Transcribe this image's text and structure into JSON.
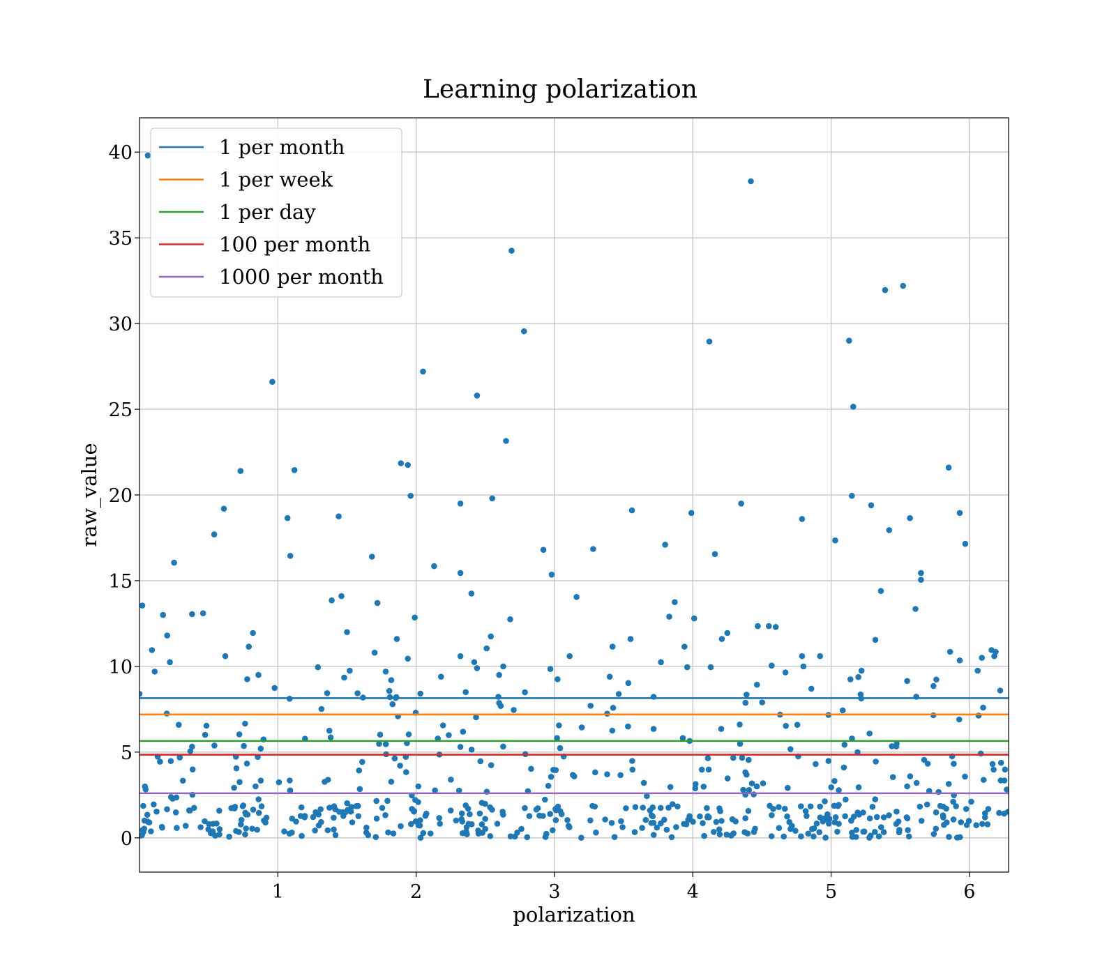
{
  "chart_data": {
    "type": "scatter",
    "title": "Learning polarization",
    "xlabel": "polarization",
    "ylabel": "raw_value",
    "xlim": [
      0,
      6.2832
    ],
    "ylim": [
      -2,
      42
    ],
    "xticks": [
      1,
      2,
      3,
      4,
      5,
      6
    ],
    "yticks": [
      0,
      5,
      10,
      15,
      20,
      25,
      30,
      35,
      40
    ],
    "grid": true,
    "legend_position": "top-left",
    "point_color": "#1f77b4",
    "hlines": [
      {
        "name": "1 per month",
        "y": 8.15,
        "color": "#1f77b4"
      },
      {
        "name": "1 per week",
        "y": 7.2,
        "color": "#ff7f0e"
      },
      {
        "name": "1 per day",
        "y": 5.65,
        "color": "#2ca02c"
      },
      {
        "name": "100 per month",
        "y": 4.85,
        "color": "#d62728"
      },
      {
        "name": "1000 per month",
        "y": 2.6,
        "color": "#9467bd"
      }
    ],
    "outliers": [
      [
        0.06,
        39.8
      ],
      [
        0.02,
        13.55
      ],
      [
        0.0,
        8.4
      ],
      [
        0.09,
        10.95
      ],
      [
        0.11,
        9.7
      ],
      [
        0.17,
        13.0
      ],
      [
        0.2,
        11.8
      ],
      [
        0.22,
        10.25
      ],
      [
        0.25,
        16.05
      ],
      [
        0.38,
        13.05
      ],
      [
        0.46,
        13.1
      ],
      [
        0.54,
        17.7
      ],
      [
        0.61,
        19.2
      ],
      [
        0.62,
        10.6
      ],
      [
        0.73,
        21.4
      ],
      [
        0.79,
        11.15
      ],
      [
        0.82,
        11.95
      ],
      [
        0.86,
        9.5
      ],
      [
        0.96,
        26.6
      ],
      [
        1.07,
        18.65
      ],
      [
        1.09,
        16.45
      ],
      [
        1.12,
        21.45
      ],
      [
        1.29,
        9.95
      ],
      [
        1.39,
        13.85
      ],
      [
        1.44,
        18.75
      ],
      [
        1.46,
        14.1
      ],
      [
        1.48,
        9.35
      ],
      [
        1.5,
        12.0
      ],
      [
        1.52,
        9.75
      ],
      [
        1.68,
        16.4
      ],
      [
        1.72,
        13.7
      ],
      [
        1.7,
        10.8
      ],
      [
        1.78,
        9.7
      ],
      [
        1.82,
        9.2
      ],
      [
        1.86,
        11.6
      ],
      [
        1.89,
        21.85
      ],
      [
        1.94,
        21.75
      ],
      [
        1.96,
        19.95
      ],
      [
        1.94,
        10.45
      ],
      [
        1.99,
        12.85
      ],
      [
        2.05,
        27.2
      ],
      [
        2.13,
        15.85
      ],
      [
        2.18,
        9.4
      ],
      [
        2.32,
        19.5
      ],
      [
        2.32,
        15.45
      ],
      [
        2.32,
        10.6
      ],
      [
        2.4,
        14.25
      ],
      [
        2.42,
        10.25
      ],
      [
        2.44,
        25.8
      ],
      [
        2.44,
        9.9
      ],
      [
        2.51,
        11.05
      ],
      [
        2.54,
        11.75
      ],
      [
        2.55,
        19.8
      ],
      [
        2.6,
        9.5
      ],
      [
        2.63,
        10.0
      ],
      [
        2.65,
        23.15
      ],
      [
        2.69,
        34.25
      ],
      [
        2.68,
        12.75
      ],
      [
        2.78,
        29.55
      ],
      [
        2.92,
        16.8
      ],
      [
        2.98,
        15.35
      ],
      [
        2.97,
        9.85
      ],
      [
        3.16,
        14.05
      ],
      [
        3.11,
        10.6
      ],
      [
        3.28,
        16.85
      ],
      [
        3.42,
        11.15
      ],
      [
        3.4,
        9.4
      ],
      [
        3.56,
        19.1
      ],
      [
        3.55,
        11.6
      ],
      [
        3.8,
        17.1
      ],
      [
        3.83,
        12.9
      ],
      [
        3.87,
        13.75
      ],
      [
        3.77,
        10.25
      ],
      [
        3.94,
        11.15
      ],
      [
        3.99,
        18.95
      ],
      [
        4.01,
        12.8
      ],
      [
        3.96,
        9.95
      ],
      [
        4.12,
        28.95
      ],
      [
        4.16,
        16.55
      ],
      [
        4.21,
        11.6
      ],
      [
        4.25,
        11.95
      ],
      [
        4.13,
        9.95
      ],
      [
        4.35,
        19.5
      ],
      [
        4.42,
        38.3
      ],
      [
        4.47,
        12.35
      ],
      [
        4.55,
        12.35
      ],
      [
        4.6,
        12.3
      ],
      [
        4.57,
        10.05
      ],
      [
        4.67,
        9.65
      ],
      [
        4.79,
        18.6
      ],
      [
        4.79,
        10.6
      ],
      [
        4.8,
        10.0
      ],
      [
        4.92,
        10.6
      ],
      [
        5.03,
        17.35
      ],
      [
        5.13,
        29.0
      ],
      [
        5.15,
        19.95
      ],
      [
        5.16,
        25.15
      ],
      [
        5.14,
        9.25
      ],
      [
        5.22,
        9.75
      ],
      [
        5.29,
        19.4
      ],
      [
        5.32,
        11.55
      ],
      [
        5.36,
        14.4
      ],
      [
        5.39,
        31.95
      ],
      [
        5.42,
        17.95
      ],
      [
        5.52,
        32.2
      ],
      [
        5.57,
        18.65
      ],
      [
        5.61,
        13.35
      ],
      [
        5.65,
        15.45
      ],
      [
        5.65,
        15.05
      ],
      [
        5.55,
        9.15
      ],
      [
        5.85,
        21.6
      ],
      [
        5.86,
        10.85
      ],
      [
        5.93,
        18.95
      ],
      [
        5.93,
        10.35
      ],
      [
        5.97,
        17.15
      ],
      [
        6.06,
        9.75
      ],
      [
        6.09,
        10.5
      ],
      [
        6.16,
        10.95
      ],
      [
        6.19,
        10.85
      ],
      [
        6.18,
        10.6
      ]
    ],
    "bulk_points_note": ""
  }
}
